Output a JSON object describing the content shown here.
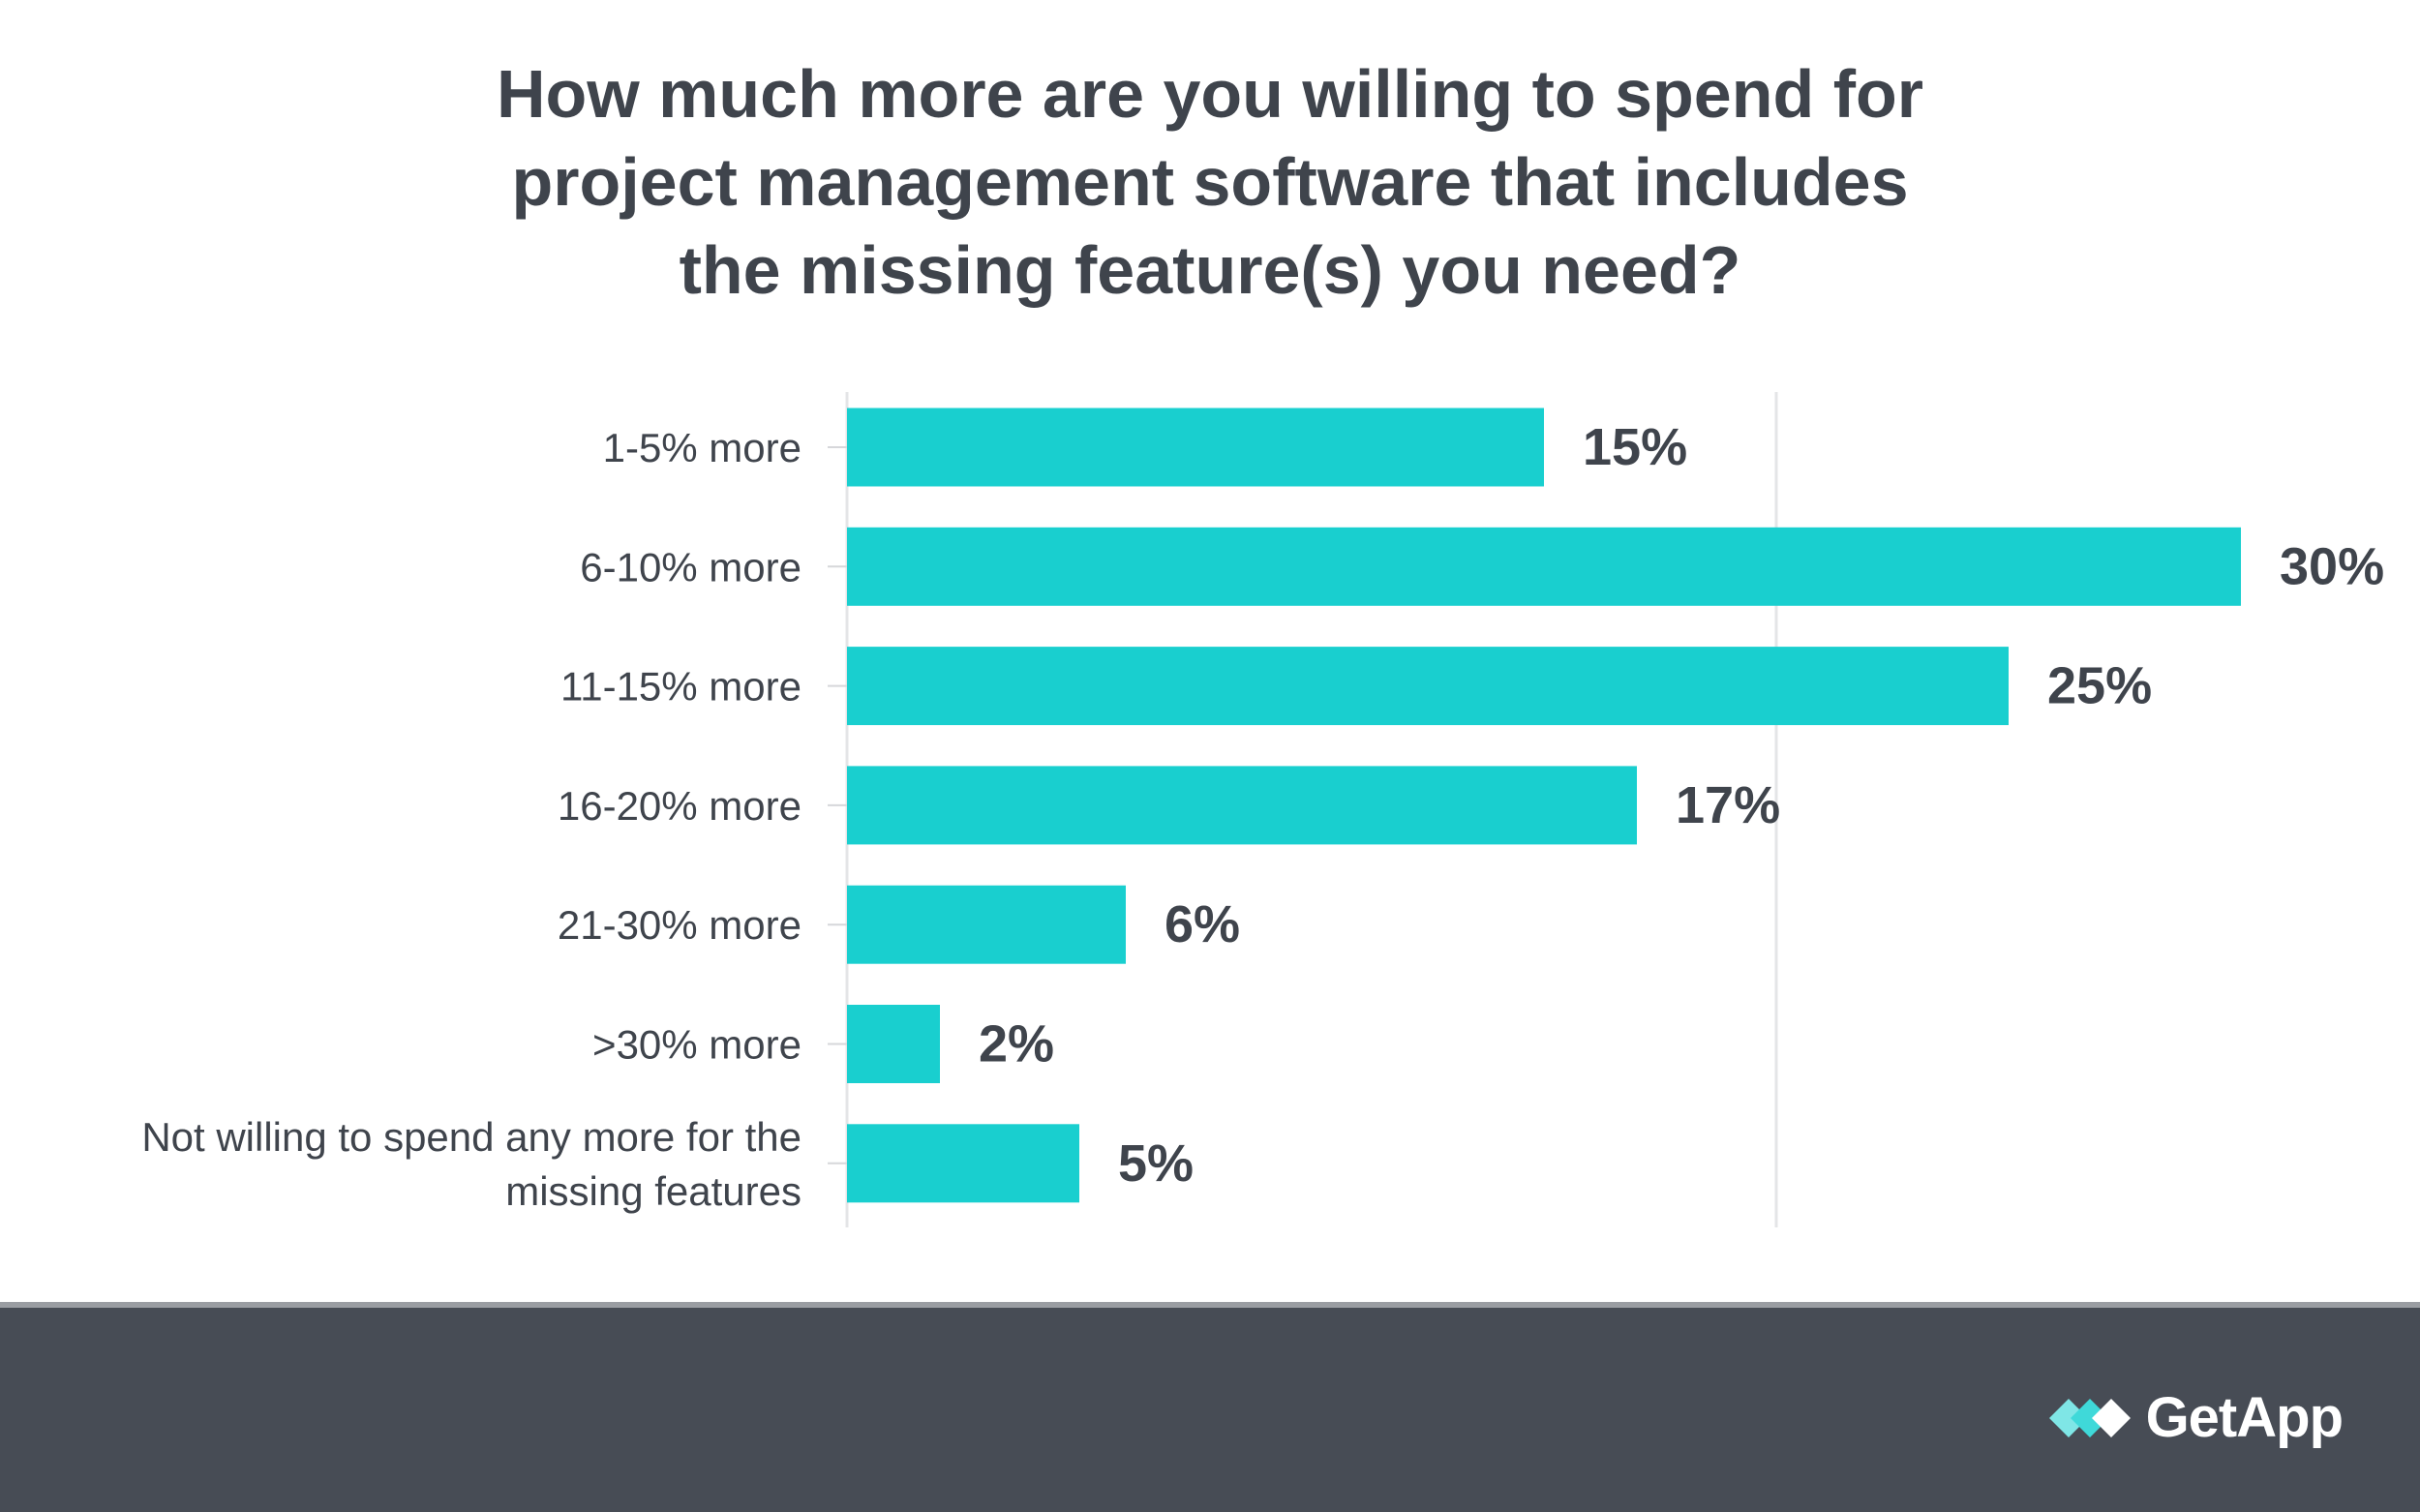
{
  "chart_data": {
    "type": "bar",
    "orientation": "horizontal",
    "title": "How much more are you willing to spend for\nproject management software that includes\nthe missing feature(s) you need?",
    "categories": [
      "1-5% more",
      "6-10% more",
      "11-15% more",
      "16-20% more",
      "21-30% more",
      ">30% more",
      "Not willing to spend any more for the\nmissing features"
    ],
    "values": [
      15,
      30,
      25,
      17,
      6,
      2,
      5
    ],
    "value_labels": [
      "15%",
      "30%",
      "25%",
      "17%",
      "6%",
      "2%",
      "5%"
    ],
    "xlim": [
      0,
      30
    ],
    "grid": true,
    "legend": "none",
    "bar_color": "#19cfcf",
    "label_color": "#3f444c"
  },
  "footer": {
    "brand": "GetApp",
    "brand_icon": "getapp-logo-icon",
    "background_color": "#474c55"
  }
}
